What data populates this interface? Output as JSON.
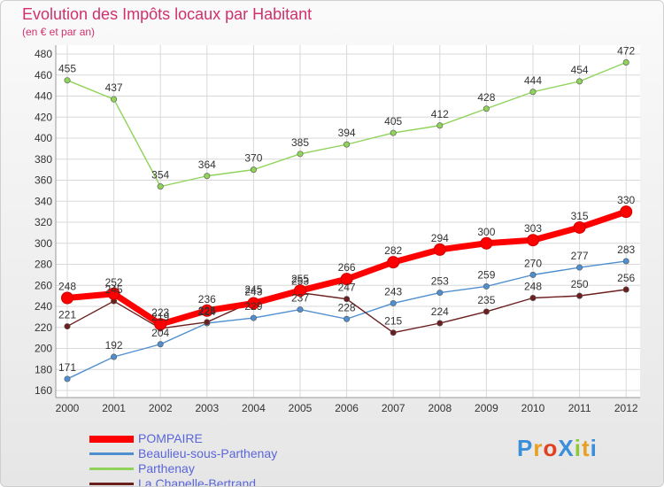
{
  "title": "Evolution des Impôts locaux par Habitant",
  "subtitle": "(en € et par an)",
  "logo_text": "ProXiti",
  "chart_data": {
    "type": "line",
    "title": "Evolution des Impôts locaux par Habitant",
    "subtitle": "(en € et par an)",
    "x": [
      "2000",
      "2001",
      "2002",
      "2003",
      "2004",
      "2005",
      "2006",
      "2007",
      "2008",
      "2009",
      "2010",
      "2011",
      "2012"
    ],
    "ylim": [
      160,
      480
    ],
    "yticks": [
      160,
      180,
      200,
      220,
      240,
      260,
      280,
      300,
      320,
      340,
      360,
      380,
      400,
      420,
      440,
      460,
      480
    ],
    "grid": true,
    "legend_position": "bottom-left",
    "series": [
      {
        "name": "POMPAIRE",
        "color": "#ff0000",
        "values": [
          248,
          252,
          223,
          236,
          243,
          255,
          266,
          282,
          294,
          300,
          303,
          315,
          330
        ]
      },
      {
        "name": "Beaulieu-sous-Parthenay",
        "color": "#4f8fcf",
        "values": [
          171,
          192,
          204,
          224,
          229,
          237,
          228,
          243,
          253,
          259,
          270,
          277,
          283
        ]
      },
      {
        "name": "Parthenay",
        "color": "#8fd35a",
        "values": [
          455,
          437,
          354,
          364,
          370,
          385,
          394,
          405,
          412,
          428,
          444,
          454,
          472
        ]
      },
      {
        "name": "La Chapelle-Bertrand",
        "color": "#6b1f1f",
        "values": [
          221,
          245,
          219,
          225,
          245,
          253,
          247,
          215,
          224,
          235,
          248,
          250,
          256
        ]
      }
    ]
  }
}
